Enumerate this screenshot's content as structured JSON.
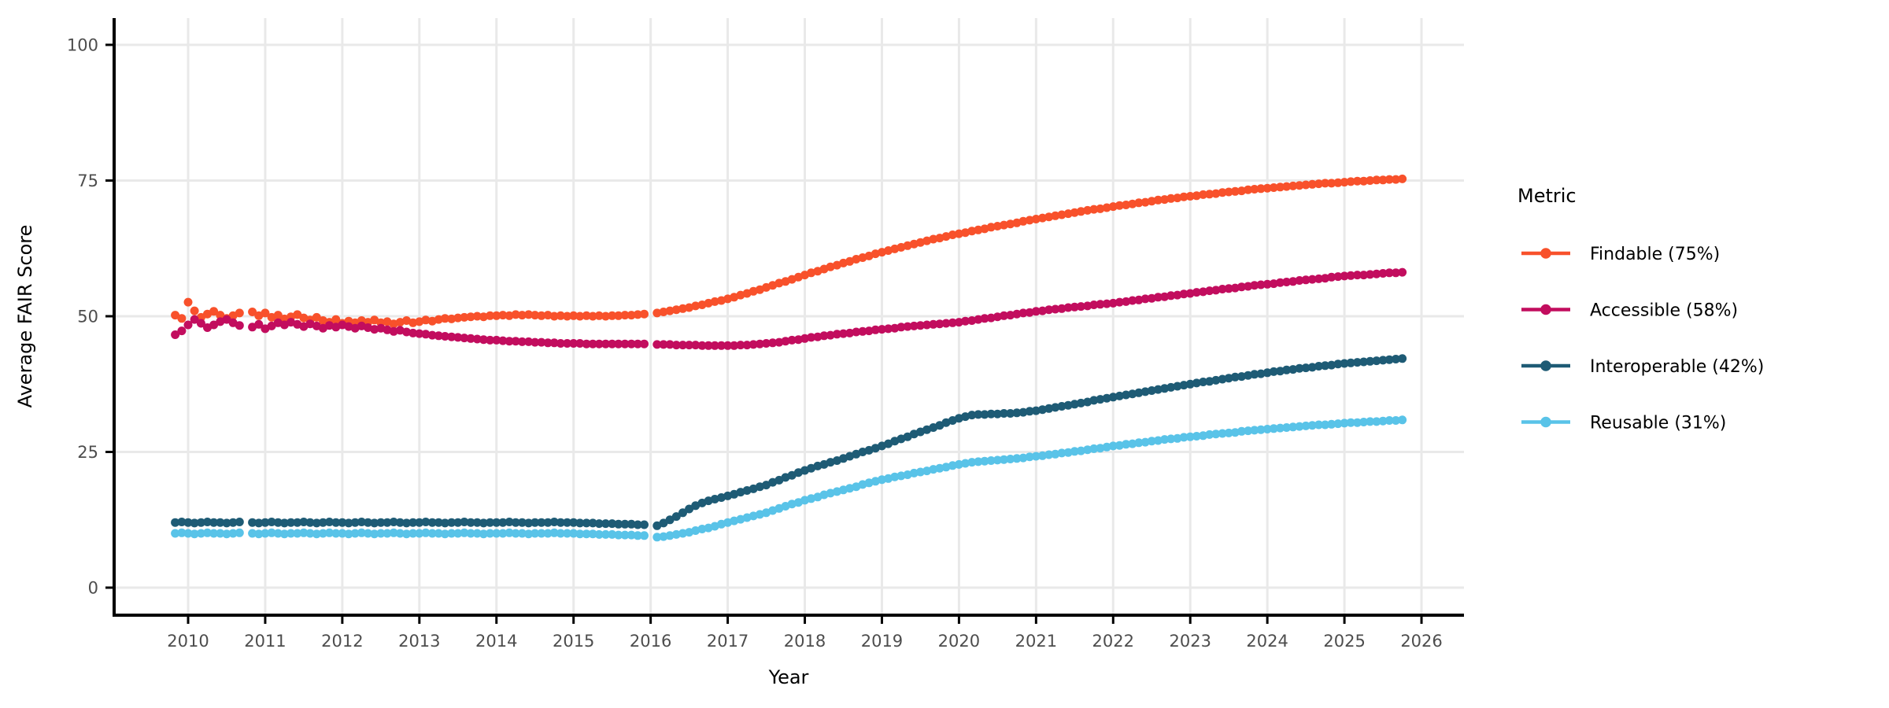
{
  "chart_data": {
    "type": "line",
    "title": "",
    "xlabel": "Year",
    "ylabel": "Average FAIR Score",
    "x_ticks": [
      2010,
      2011,
      2012,
      2013,
      2014,
      2015,
      2016,
      2017,
      2018,
      2019,
      2020,
      2021,
      2022,
      2023,
      2024,
      2025,
      2026
    ],
    "y_ticks": [
      0,
      25,
      50,
      75,
      100
    ],
    "ylim": [
      0,
      100
    ],
    "xlim": [
      2009.05,
      2026.42
    ],
    "grid": true,
    "marker": "point",
    "legend": {
      "title": "Metric",
      "position": "right"
    },
    "colors": {
      "grid": "#e9e9e9",
      "axis_line": "#000000",
      "tick_text": "#4d4d4d",
      "title_text": "#000000",
      "background": "#ffffff"
    },
    "x": [
      2009.833,
      2009.917,
      2010.0,
      2010.083,
      2010.167,
      2010.25,
      2010.333,
      2010.417,
      2010.5,
      2010.583,
      2010.667,
      2010.833,
      2010.917,
      2011.0,
      2011.083,
      2011.167,
      2011.25,
      2011.333,
      2011.417,
      2011.5,
      2011.583,
      2011.667,
      2011.75,
      2011.833,
      2011.917,
      2012.0,
      2012.083,
      2012.167,
      2012.25,
      2012.333,
      2012.417,
      2012.5,
      2012.583,
      2012.667,
      2012.75,
      2012.833,
      2012.917,
      2013.0,
      2013.083,
      2013.167,
      2013.25,
      2013.333,
      2013.417,
      2013.5,
      2013.583,
      2013.667,
      2013.75,
      2013.833,
      2013.917,
      2014.0,
      2014.083,
      2014.167,
      2014.25,
      2014.333,
      2014.417,
      2014.5,
      2014.583,
      2014.667,
      2014.75,
      2014.833,
      2014.917,
      2015.0,
      2015.083,
      2015.167,
      2015.25,
      2015.333,
      2015.417,
      2015.5,
      2015.583,
      2015.667,
      2015.75,
      2015.833,
      2015.917,
      2016.083,
      2016.167,
      2016.25,
      2016.333,
      2016.417,
      2016.5,
      2016.583,
      2016.667,
      2016.75,
      2016.833,
      2016.917,
      2017.0,
      2017.083,
      2017.167,
      2017.25,
      2017.333,
      2017.417,
      2017.5,
      2017.583,
      2017.667,
      2017.75,
      2017.833,
      2017.917,
      2018.0,
      2018.083,
      2018.167,
      2018.25,
      2018.333,
      2018.417,
      2018.5,
      2018.583,
      2018.667,
      2018.75,
      2018.833,
      2018.917,
      2019.0,
      2019.083,
      2019.167,
      2019.25,
      2019.333,
      2019.417,
      2019.5,
      2019.583,
      2019.667,
      2019.75,
      2019.833,
      2019.917,
      2020.0,
      2020.083,
      2020.167,
      2020.25,
      2020.333,
      2020.417,
      2020.5,
      2020.583,
      2020.667,
      2020.75,
      2020.833,
      2020.917,
      2021.0,
      2021.083,
      2021.167,
      2021.25,
      2021.333,
      2021.417,
      2021.5,
      2021.583,
      2021.667,
      2021.75,
      2021.833,
      2021.917,
      2022.0,
      2022.083,
      2022.167,
      2022.25,
      2022.333,
      2022.417,
      2022.5,
      2022.583,
      2022.667,
      2022.75,
      2022.833,
      2022.917,
      2023.0,
      2023.083,
      2023.167,
      2023.25,
      2023.333,
      2023.417,
      2023.5,
      2023.583,
      2023.667,
      2023.75,
      2023.833,
      2023.917,
      2024.0,
      2024.083,
      2024.167,
      2024.25,
      2024.333,
      2024.417,
      2024.5,
      2024.583,
      2024.667,
      2024.75,
      2024.833,
      2024.917,
      2025.0,
      2025.083,
      2025.167,
      2025.25,
      2025.333,
      2025.417,
      2025.5,
      2025.583,
      2025.667,
      2025.75
    ],
    "series": [
      {
        "name": "Findable (75%)",
        "color": "#F8512B",
        "values": [
          50.2,
          49.6,
          52.6,
          51.0,
          49.8,
          50.4,
          50.9,
          50.2,
          49.6,
          50.1,
          50.6,
          50.8,
          50.1,
          50.6,
          49.8,
          50.2,
          49.5,
          49.9,
          50.3,
          49.7,
          49.3,
          49.8,
          49.2,
          48.9,
          49.4,
          48.7,
          49.1,
          48.8,
          49.2,
          48.9,
          49.3,
          48.8,
          49.0,
          48.6,
          48.9,
          49.2,
          48.8,
          49.0,
          49.3,
          49.1,
          49.4,
          49.6,
          49.5,
          49.7,
          49.8,
          49.9,
          50.0,
          49.9,
          50.1,
          50.1,
          50.2,
          50.1,
          50.3,
          50.2,
          50.3,
          50.2,
          50.1,
          50.2,
          50.0,
          50.1,
          50.0,
          50.1,
          50.0,
          50.1,
          50.0,
          50.1,
          50.0,
          50.1,
          50.1,
          50.2,
          50.2,
          50.3,
          50.4,
          50.6,
          50.8,
          51.0,
          51.2,
          51.4,
          51.6,
          51.9,
          52.1,
          52.4,
          52.7,
          52.9,
          53.2,
          53.5,
          53.9,
          54.2,
          54.6,
          54.9,
          55.3,
          55.7,
          56.1,
          56.4,
          56.8,
          57.2,
          57.6,
          58.0,
          58.3,
          58.7,
          59.1,
          59.4,
          59.8,
          60.1,
          60.5,
          60.8,
          61.1,
          61.5,
          61.8,
          62.1,
          62.4,
          62.7,
          63.0,
          63.3,
          63.6,
          63.9,
          64.2,
          64.4,
          64.7,
          65.0,
          65.2,
          65.4,
          65.7,
          65.9,
          66.1,
          66.4,
          66.6,
          66.8,
          67.0,
          67.2,
          67.5,
          67.7,
          67.9,
          68.1,
          68.3,
          68.5,
          68.7,
          68.9,
          69.1,
          69.3,
          69.5,
          69.7,
          69.8,
          70.0,
          70.2,
          70.4,
          70.5,
          70.7,
          70.9,
          71.0,
          71.2,
          71.4,
          71.5,
          71.7,
          71.8,
          72.0,
          72.1,
          72.2,
          72.4,
          72.5,
          72.6,
          72.8,
          72.9,
          73.0,
          73.1,
          73.3,
          73.4,
          73.5,
          73.6,
          73.7,
          73.8,
          73.9,
          74.0,
          74.1,
          74.2,
          74.3,
          74.4,
          74.5,
          74.5,
          74.6,
          74.7,
          74.8,
          74.9,
          74.9,
          75.0,
          75.1,
          75.1,
          75.2,
          75.2,
          75.3
        ]
      },
      {
        "name": "Accessible (58%)",
        "color": "#C20D5E",
        "values": [
          46.6,
          47.3,
          48.4,
          49.4,
          48.7,
          47.9,
          48.4,
          49.0,
          49.4,
          48.8,
          48.3,
          48.0,
          48.5,
          47.7,
          48.2,
          48.8,
          48.4,
          48.9,
          48.5,
          48.1,
          48.6,
          48.2,
          47.8,
          48.3,
          48.0,
          48.4,
          48.1,
          47.8,
          48.2,
          47.9,
          47.6,
          47.8,
          47.5,
          47.2,
          47.4,
          47.1,
          46.9,
          46.8,
          46.7,
          46.5,
          46.4,
          46.3,
          46.2,
          46.1,
          46.0,
          45.9,
          45.8,
          45.7,
          45.6,
          45.6,
          45.5,
          45.4,
          45.4,
          45.3,
          45.3,
          45.2,
          45.2,
          45.1,
          45.1,
          45.0,
          45.0,
          45.0,
          45.0,
          44.9,
          44.9,
          44.9,
          44.9,
          44.9,
          44.9,
          44.9,
          44.9,
          44.9,
          44.9,
          44.8,
          44.8,
          44.8,
          44.7,
          44.7,
          44.7,
          44.7,
          44.6,
          44.6,
          44.6,
          44.6,
          44.6,
          44.6,
          44.7,
          44.7,
          44.8,
          44.9,
          45.0,
          45.1,
          45.2,
          45.4,
          45.6,
          45.7,
          45.9,
          46.1,
          46.2,
          46.4,
          46.5,
          46.7,
          46.8,
          46.9,
          47.1,
          47.2,
          47.3,
          47.5,
          47.6,
          47.7,
          47.8,
          48.0,
          48.1,
          48.2,
          48.3,
          48.4,
          48.5,
          48.6,
          48.7,
          48.8,
          48.9,
          49.1,
          49.2,
          49.4,
          49.6,
          49.7,
          49.9,
          50.1,
          50.2,
          50.4,
          50.6,
          50.7,
          50.9,
          51.0,
          51.2,
          51.3,
          51.4,
          51.6,
          51.7,
          51.8,
          51.9,
          52.1,
          52.2,
          52.3,
          52.4,
          52.6,
          52.7,
          52.9,
          53.0,
          53.2,
          53.3,
          53.5,
          53.6,
          53.8,
          53.9,
          54.1,
          54.2,
          54.4,
          54.5,
          54.7,
          54.8,
          55.0,
          55.1,
          55.2,
          55.4,
          55.5,
          55.7,
          55.8,
          55.9,
          56.0,
          56.2,
          56.3,
          56.4,
          56.6,
          56.7,
          56.8,
          56.9,
          57.0,
          57.2,
          57.3,
          57.4,
          57.5,
          57.6,
          57.6,
          57.7,
          57.8,
          57.9,
          58.0,
          58.0,
          58.1
        ]
      },
      {
        "name": "Interoperable (42%)",
        "color": "#1E5B75",
        "values": [
          12.0,
          12.1,
          12.0,
          11.9,
          12.0,
          12.1,
          12.0,
          12.0,
          11.9,
          12.0,
          12.1,
          12.0,
          11.9,
          12.0,
          12.1,
          12.0,
          11.9,
          12.0,
          12.0,
          12.1,
          12.0,
          11.9,
          12.0,
          12.1,
          12.0,
          12.0,
          11.9,
          12.0,
          12.1,
          12.0,
          11.9,
          12.0,
          12.0,
          12.1,
          12.0,
          11.9,
          12.0,
          12.0,
          12.1,
          12.0,
          12.0,
          11.9,
          12.0,
          12.0,
          12.1,
          12.0,
          12.0,
          11.9,
          12.0,
          12.0,
          12.0,
          12.1,
          12.0,
          12.0,
          11.9,
          12.0,
          12.0,
          12.0,
          12.1,
          12.0,
          12.0,
          12.0,
          11.9,
          11.9,
          11.9,
          11.8,
          11.8,
          11.8,
          11.7,
          11.7,
          11.7,
          11.6,
          11.6,
          11.4,
          11.9,
          12.5,
          13.1,
          13.8,
          14.5,
          15.1,
          15.6,
          16.0,
          16.3,
          16.6,
          16.9,
          17.2,
          17.6,
          17.9,
          18.2,
          18.6,
          18.9,
          19.4,
          19.8,
          20.3,
          20.7,
          21.2,
          21.6,
          22.0,
          22.4,
          22.7,
          23.1,
          23.4,
          23.8,
          24.2,
          24.6,
          25.0,
          25.3,
          25.7,
          26.1,
          26.5,
          27.0,
          27.4,
          27.8,
          28.3,
          28.7,
          29.1,
          29.5,
          29.9,
          30.4,
          30.8,
          31.2,
          31.5,
          31.8,
          31.9,
          31.9,
          32.0,
          32.0,
          32.1,
          32.1,
          32.2,
          32.3,
          32.5,
          32.6,
          32.8,
          33.0,
          33.2,
          33.4,
          33.6,
          33.8,
          34.0,
          34.2,
          34.5,
          34.7,
          34.9,
          35.1,
          35.3,
          35.5,
          35.7,
          35.9,
          36.1,
          36.3,
          36.5,
          36.7,
          36.9,
          37.1,
          37.3,
          37.5,
          37.7,
          37.9,
          38.0,
          38.2,
          38.4,
          38.6,
          38.8,
          38.9,
          39.1,
          39.3,
          39.4,
          39.6,
          39.8,
          39.9,
          40.1,
          40.2,
          40.4,
          40.5,
          40.6,
          40.8,
          40.9,
          41.0,
          41.2,
          41.3,
          41.4,
          41.5,
          41.6,
          41.7,
          41.8,
          41.9,
          42.0,
          42.1,
          42.2
        ]
      },
      {
        "name": "Reusable (31%)",
        "color": "#59C3E8",
        "values": [
          10.0,
          10.1,
          10.0,
          9.9,
          10.0,
          10.1,
          10.0,
          10.0,
          9.9,
          10.0,
          10.1,
          10.0,
          9.9,
          10.0,
          10.1,
          10.0,
          9.9,
          10.0,
          10.0,
          10.1,
          10.0,
          9.9,
          10.0,
          10.1,
          10.0,
          10.0,
          9.9,
          10.0,
          10.1,
          10.0,
          9.9,
          10.0,
          10.0,
          10.1,
          10.0,
          9.9,
          10.0,
          10.0,
          10.1,
          10.0,
          10.0,
          9.9,
          10.0,
          10.0,
          10.1,
          10.0,
          10.0,
          9.9,
          10.0,
          10.0,
          10.0,
          10.1,
          10.0,
          10.0,
          9.9,
          10.0,
          10.0,
          10.0,
          10.1,
          10.0,
          10.0,
          10.0,
          9.9,
          9.9,
          9.9,
          9.8,
          9.8,
          9.8,
          9.7,
          9.7,
          9.7,
          9.6,
          9.6,
          9.3,
          9.4,
          9.6,
          9.8,
          10.0,
          10.2,
          10.5,
          10.8,
          11.0,
          11.3,
          11.7,
          12.0,
          12.3,
          12.6,
          12.9,
          13.2,
          13.5,
          13.8,
          14.2,
          14.6,
          15.0,
          15.4,
          15.7,
          16.1,
          16.4,
          16.7,
          17.1,
          17.4,
          17.7,
          18.0,
          18.3,
          18.6,
          19.0,
          19.3,
          19.6,
          19.9,
          20.1,
          20.4,
          20.6,
          20.8,
          21.1,
          21.3,
          21.5,
          21.8,
          22.0,
          22.2,
          22.5,
          22.7,
          22.9,
          23.1,
          23.2,
          23.3,
          23.4,
          23.5,
          23.6,
          23.7,
          23.8,
          23.9,
          24.1,
          24.2,
          24.3,
          24.5,
          24.6,
          24.8,
          24.9,
          25.1,
          25.2,
          25.4,
          25.6,
          25.7,
          25.9,
          26.1,
          26.2,
          26.4,
          26.5,
          26.7,
          26.8,
          27.0,
          27.1,
          27.3,
          27.4,
          27.5,
          27.7,
          27.8,
          27.9,
          28.0,
          28.2,
          28.3,
          28.4,
          28.5,
          28.6,
          28.8,
          28.9,
          29.0,
          29.1,
          29.2,
          29.3,
          29.4,
          29.5,
          29.6,
          29.7,
          29.8,
          29.9,
          30.0,
          30.0,
          30.1,
          30.2,
          30.3,
          30.4,
          30.4,
          30.5,
          30.6,
          30.6,
          30.7,
          30.8,
          30.8,
          30.9
        ]
      }
    ]
  }
}
